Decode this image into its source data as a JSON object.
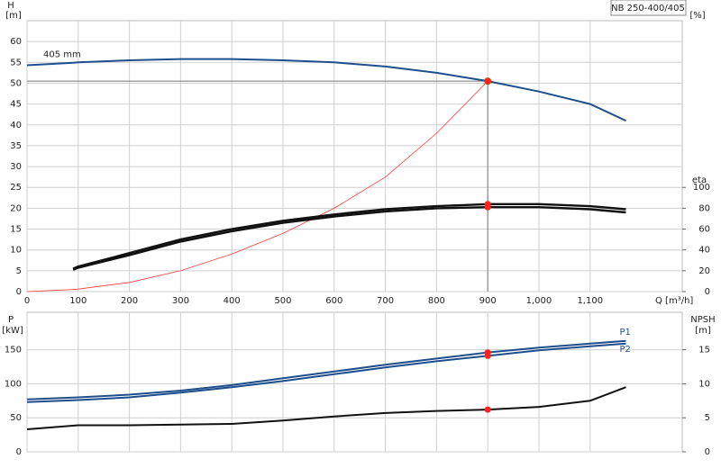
{
  "title": "NB 250-400/405",
  "chart_data": [
    {
      "type": "line",
      "y_label": "H",
      "y_unit": "[m]",
      "y2_label": "eta",
      "y2_unit": "[%]",
      "xlabel": "Q [m³/h]",
      "x": [
        0,
        90,
        100,
        200,
        300,
        400,
        500,
        600,
        700,
        800,
        900,
        1000,
        1100,
        1170
      ],
      "xlim": [
        0,
        1280
      ],
      "xticks": [
        0,
        100,
        200,
        300,
        400,
        500,
        600,
        700,
        800,
        900,
        {
          "value": 1000,
          "label": "1,000"
        },
        {
          "value": 1100,
          "label": "1,100"
        }
      ],
      "ylim": [
        0,
        65
      ],
      "yticks": [
        0,
        5,
        10,
        15,
        20,
        25,
        30,
        35,
        40,
        45,
        50,
        55,
        60
      ],
      "y2lim": [
        0,
        260
      ],
      "y2ticks": [
        0,
        20,
        40,
        60,
        80,
        100
      ],
      "grid": true,
      "duty_point": {
        "x": 900
      },
      "guide_lines": true,
      "series": [
        {
          "name": "405 mm",
          "color": "#1f4e8c",
          "marker_color": "#f5a623",
          "values": [
            54.3,
            54.9,
            55,
            55.5,
            55.8,
            55.8,
            55.5,
            55,
            54,
            52.5,
            50.5,
            48,
            45,
            41
          ]
        },
        {
          "color": "#ff3b3b",
          "marker_color": "#ff2020",
          "values": [
            0,
            0.5,
            0.6,
            2.2,
            5,
            9,
            14,
            20,
            27.5,
            38,
            50.5,
            null,
            null,
            null
          ]
        },
        {
          "color": "#111111",
          "marker_color": "#ff2020",
          "axis": "y2",
          "values": [
            null,
            22,
            24,
            37,
            50,
            60,
            68,
            74,
            79,
            82,
            84,
            84,
            82,
            79
          ]
        },
        {
          "color": "#111111",
          "marker_color": "#ff2020",
          "axis": "y2",
          "values": [
            null,
            21,
            23,
            35,
            48,
            58,
            66,
            72,
            77,
            80,
            81,
            81,
            79,
            76
          ]
        }
      ]
    },
    {
      "type": "line",
      "y_label": "P",
      "y_unit": "[kW]",
      "y2_label": "NPSH",
      "y2_unit": "[m]",
      "x": [
        0,
        100,
        200,
        300,
        400,
        500,
        600,
        700,
        800,
        900,
        1000,
        1100,
        1170
      ],
      "xlim": [
        0,
        1280
      ],
      "ylim": [
        0,
        205
      ],
      "yticks": [
        0,
        50,
        100,
        150
      ],
      "y2lim": [
        0,
        20.5
      ],
      "y2ticks": [
        0,
        5,
        10,
        15
      ],
      "grid": true,
      "duty_point": {
        "x": 900
      },
      "guide_lines": false,
      "series": [
        {
          "name": "P1",
          "color": "#1f4e8c",
          "marker_color": "#ff2020",
          "values": [
            77,
            80,
            84,
            90,
            98,
            108,
            118,
            128,
            137,
            146,
            153,
            159,
            163
          ]
        },
        {
          "name": "P2",
          "color": "#1f4e8c",
          "marker_color": "#ff2020",
          "values": [
            73,
            76,
            80,
            87,
            95,
            104,
            114,
            124,
            133,
            141,
            149,
            155,
            159
          ]
        },
        {
          "color": "#111111",
          "marker_color": "#ff2020",
          "axis": "y2",
          "values": [
            3.3,
            3.9,
            3.9,
            4.0,
            4.1,
            4.6,
            5.2,
            5.7,
            6.0,
            6.2,
            6.6,
            7.5,
            9.5
          ]
        }
      ]
    }
  ]
}
